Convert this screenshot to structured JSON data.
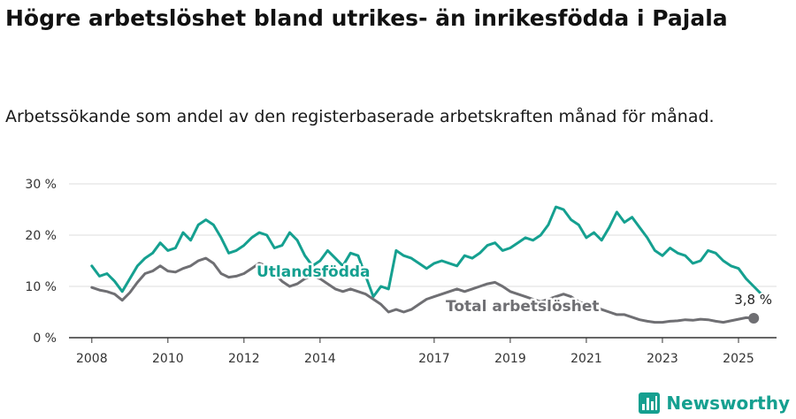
{
  "title": "Högre arbetslöshet bland utrikes- än inrikesfödda i Pajala",
  "subtitle": "Arbetssökande som andel av den registerbaserade arbetskraften månad för månad.",
  "brand": {
    "name": "Newsworthy",
    "icon": "newsworthy-logo-icon",
    "color": "#15a090"
  },
  "chart_data": {
    "type": "line",
    "title": "Högre arbetslöshet bland utrikes- än inrikesfödda i Pajala",
    "subtitle": "Arbetssökande som andel av den registerbaserade arbetskraften månad för månad.",
    "xlabel": "",
    "ylabel": "",
    "xlim": [
      2007.4,
      2026.0
    ],
    "ylim": [
      0,
      30
    ],
    "grid": true,
    "y_ticks": [
      0,
      10,
      20,
      30
    ],
    "y_tick_labels": [
      "0 %",
      "10 %",
      "20 %",
      "30 %"
    ],
    "x_ticks": [
      2008,
      2010,
      2012,
      2014,
      2017,
      2019,
      2021,
      2023,
      2025
    ],
    "x_tick_labels": [
      "2008",
      "2010",
      "2012",
      "2014",
      "2017",
      "2019",
      "2021",
      "2023",
      "2025"
    ],
    "end_label": "3,8 %",
    "series": [
      {
        "name": "Utlandsfödda",
        "color": "#15a090",
        "points": [
          [
            2008.0,
            14.0
          ],
          [
            2008.2,
            12.0
          ],
          [
            2008.4,
            12.5
          ],
          [
            2008.6,
            11.0
          ],
          [
            2008.8,
            9.0
          ],
          [
            2009.0,
            11.5
          ],
          [
            2009.2,
            14.0
          ],
          [
            2009.4,
            15.5
          ],
          [
            2009.6,
            16.5
          ],
          [
            2009.8,
            18.5
          ],
          [
            2010.0,
            17.0
          ],
          [
            2010.2,
            17.5
          ],
          [
            2010.4,
            20.5
          ],
          [
            2010.6,
            19.0
          ],
          [
            2010.8,
            22.0
          ],
          [
            2011.0,
            23.0
          ],
          [
            2011.2,
            22.0
          ],
          [
            2011.4,
            19.5
          ],
          [
            2011.6,
            16.5
          ],
          [
            2011.8,
            17.0
          ],
          [
            2012.0,
            18.0
          ],
          [
            2012.2,
            19.5
          ],
          [
            2012.4,
            20.5
          ],
          [
            2012.6,
            20.0
          ],
          [
            2012.8,
            17.5
          ],
          [
            2013.0,
            18.0
          ],
          [
            2013.2,
            20.5
          ],
          [
            2013.4,
            19.0
          ],
          [
            2013.6,
            16.0
          ],
          [
            2013.8,
            14.0
          ],
          [
            2014.0,
            15.0
          ],
          [
            2014.2,
            17.0
          ],
          [
            2014.4,
            15.5
          ],
          [
            2014.6,
            14.0
          ],
          [
            2014.8,
            16.5
          ],
          [
            2015.0,
            16.0
          ],
          [
            2015.2,
            12.0
          ],
          [
            2015.4,
            8.0
          ],
          [
            2015.6,
            10.0
          ],
          [
            2015.8,
            9.5
          ],
          [
            2016.0,
            17.0
          ],
          [
            2016.2,
            16.0
          ],
          [
            2016.4,
            15.5
          ],
          [
            2016.6,
            14.5
          ],
          [
            2016.8,
            13.5
          ],
          [
            2017.0,
            14.5
          ],
          [
            2017.2,
            15.0
          ],
          [
            2017.4,
            14.5
          ],
          [
            2017.6,
            14.0
          ],
          [
            2017.8,
            16.0
          ],
          [
            2018.0,
            15.5
          ],
          [
            2018.2,
            16.5
          ],
          [
            2018.4,
            18.0
          ],
          [
            2018.6,
            18.5
          ],
          [
            2018.8,
            17.0
          ],
          [
            2019.0,
            17.5
          ],
          [
            2019.2,
            18.5
          ],
          [
            2019.4,
            19.5
          ],
          [
            2019.6,
            19.0
          ],
          [
            2019.8,
            20.0
          ],
          [
            2020.0,
            22.0
          ],
          [
            2020.2,
            25.5
          ],
          [
            2020.4,
            25.0
          ],
          [
            2020.6,
            23.0
          ],
          [
            2020.8,
            22.0
          ],
          [
            2021.0,
            19.5
          ],
          [
            2021.2,
            20.5
          ],
          [
            2021.4,
            19.0
          ],
          [
            2021.6,
            21.5
          ],
          [
            2021.8,
            24.5
          ],
          [
            2022.0,
            22.5
          ],
          [
            2022.2,
            23.5
          ],
          [
            2022.4,
            21.5
          ],
          [
            2022.6,
            19.5
          ],
          [
            2022.8,
            17.0
          ],
          [
            2023.0,
            16.0
          ],
          [
            2023.2,
            17.5
          ],
          [
            2023.4,
            16.5
          ],
          [
            2023.6,
            16.0
          ],
          [
            2023.8,
            14.5
          ],
          [
            2024.0,
            15.0
          ],
          [
            2024.2,
            17.0
          ],
          [
            2024.4,
            16.5
          ],
          [
            2024.6,
            15.0
          ],
          [
            2024.8,
            14.0
          ],
          [
            2025.0,
            13.5
          ],
          [
            2025.2,
            11.5
          ],
          [
            2025.4,
            10.0
          ],
          [
            2025.6,
            8.5
          ]
        ]
      },
      {
        "name": "Total arbetslöshet",
        "color": "#6f6f73",
        "points": [
          [
            2008.0,
            9.8
          ],
          [
            2008.2,
            9.3
          ],
          [
            2008.4,
            9.0
          ],
          [
            2008.6,
            8.5
          ],
          [
            2008.8,
            7.3
          ],
          [
            2009.0,
            8.8
          ],
          [
            2009.2,
            10.8
          ],
          [
            2009.4,
            12.5
          ],
          [
            2009.6,
            13.0
          ],
          [
            2009.8,
            14.0
          ],
          [
            2010.0,
            13.0
          ],
          [
            2010.2,
            12.8
          ],
          [
            2010.4,
            13.5
          ],
          [
            2010.6,
            14.0
          ],
          [
            2010.8,
            15.0
          ],
          [
            2011.0,
            15.5
          ],
          [
            2011.2,
            14.5
          ],
          [
            2011.4,
            12.5
          ],
          [
            2011.6,
            11.8
          ],
          [
            2011.8,
            12.0
          ],
          [
            2012.0,
            12.5
          ],
          [
            2012.2,
            13.5
          ],
          [
            2012.4,
            14.5
          ],
          [
            2012.6,
            14.0
          ],
          [
            2012.8,
            12.5
          ],
          [
            2013.0,
            11.0
          ],
          [
            2013.2,
            10.0
          ],
          [
            2013.4,
            10.5
          ],
          [
            2013.6,
            11.5
          ],
          [
            2013.8,
            12.0
          ],
          [
            2014.0,
            11.5
          ],
          [
            2014.2,
            10.5
          ],
          [
            2014.4,
            9.5
          ],
          [
            2014.6,
            9.0
          ],
          [
            2014.8,
            9.5
          ],
          [
            2015.0,
            9.0
          ],
          [
            2015.2,
            8.5
          ],
          [
            2015.4,
            7.5
          ],
          [
            2015.6,
            6.5
          ],
          [
            2015.8,
            5.0
          ],
          [
            2016.0,
            5.5
          ],
          [
            2016.2,
            5.0
          ],
          [
            2016.4,
            5.5
          ],
          [
            2016.6,
            6.5
          ],
          [
            2016.8,
            7.5
          ],
          [
            2017.0,
            8.0
          ],
          [
            2017.2,
            8.5
          ],
          [
            2017.4,
            9.0
          ],
          [
            2017.6,
            9.5
          ],
          [
            2017.8,
            9.0
          ],
          [
            2018.0,
            9.5
          ],
          [
            2018.2,
            10.0
          ],
          [
            2018.4,
            10.5
          ],
          [
            2018.6,
            10.8
          ],
          [
            2018.8,
            10.0
          ],
          [
            2019.0,
            9.0
          ],
          [
            2019.2,
            8.5
          ],
          [
            2019.4,
            8.0
          ],
          [
            2019.6,
            7.5
          ],
          [
            2019.8,
            7.0
          ],
          [
            2020.0,
            7.5
          ],
          [
            2020.2,
            8.0
          ],
          [
            2020.4,
            8.5
          ],
          [
            2020.6,
            8.0
          ],
          [
            2020.8,
            7.0
          ],
          [
            2021.0,
            6.5
          ],
          [
            2021.2,
            6.0
          ],
          [
            2021.4,
            5.5
          ],
          [
            2021.6,
            5.0
          ],
          [
            2021.8,
            4.5
          ],
          [
            2022.0,
            4.5
          ],
          [
            2022.2,
            4.0
          ],
          [
            2022.4,
            3.5
          ],
          [
            2022.6,
            3.2
          ],
          [
            2022.8,
            3.0
          ],
          [
            2023.0,
            3.0
          ],
          [
            2023.2,
            3.2
          ],
          [
            2023.4,
            3.3
          ],
          [
            2023.6,
            3.5
          ],
          [
            2023.8,
            3.4
          ],
          [
            2024.0,
            3.6
          ],
          [
            2024.2,
            3.5
          ],
          [
            2024.4,
            3.2
          ],
          [
            2024.6,
            3.0
          ],
          [
            2024.8,
            3.3
          ],
          [
            2025.0,
            3.6
          ],
          [
            2025.2,
            3.9
          ],
          [
            2025.4,
            3.8
          ]
        ]
      }
    ]
  }
}
